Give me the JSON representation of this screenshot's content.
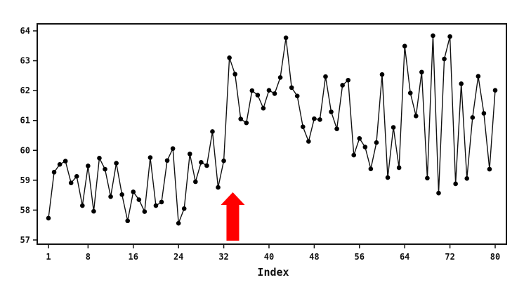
{
  "chart_data": {
    "type": "line",
    "title": "",
    "xlabel": "Index",
    "ylabel": "",
    "xlim": [
      1,
      80
    ],
    "ylim": [
      57,
      64
    ],
    "x_ticks": [
      1,
      8,
      16,
      24,
      32,
      40,
      48,
      56,
      64,
      72,
      80
    ],
    "y_ticks": [
      57,
      58,
      59,
      60,
      61,
      62,
      63,
      64
    ],
    "grid": false,
    "legend": "none",
    "colors": {
      "line": "#111111",
      "marker": "#000000",
      "arrow": "#ff0000",
      "frame": "#111111"
    },
    "annotations": [
      {
        "type": "arrow",
        "direction": "up",
        "at_x": 33.6,
        "color": "#ff0000"
      }
    ],
    "x": [
      1,
      2,
      3,
      4,
      5,
      6,
      7,
      8,
      9,
      10,
      11,
      12,
      13,
      14,
      15,
      16,
      17,
      18,
      19,
      20,
      21,
      22,
      23,
      24,
      25,
      26,
      27,
      28,
      29,
      30,
      31,
      32,
      33,
      34,
      35,
      36,
      37,
      38,
      39,
      40,
      41,
      42,
      43,
      44,
      45,
      46,
      47,
      48,
      49,
      50,
      51,
      52,
      53,
      54,
      55,
      56,
      57,
      58,
      59,
      60,
      61,
      62,
      63,
      64,
      65,
      66,
      67,
      68,
      69,
      70,
      71,
      72,
      73,
      74,
      75,
      76,
      77,
      78,
      79,
      80
    ],
    "y": [
      57.73,
      59.27,
      59.53,
      59.64,
      58.91,
      59.13,
      58.15,
      59.48,
      57.96,
      59.74,
      59.37,
      58.45,
      59.57,
      58.52,
      57.64,
      58.61,
      58.35,
      57.95,
      59.76,
      58.15,
      58.27,
      59.66,
      60.06,
      57.56,
      58.05,
      59.88,
      58.95,
      59.6,
      59.49,
      60.63,
      58.76,
      59.65,
      63.1,
      62.55,
      61.05,
      60.92,
      62.0,
      61.85,
      61.41,
      62.01,
      61.9,
      62.44,
      63.77,
      62.1,
      61.82,
      60.79,
      60.3,
      61.06,
      61.03,
      62.47,
      61.29,
      60.72,
      62.18,
      62.35,
      59.84,
      60.4,
      60.11,
      59.38,
      60.26,
      62.54,
      59.09,
      60.77,
      59.42,
      63.49,
      61.92,
      61.15,
      62.62,
      59.07,
      63.84,
      58.57,
      63.06,
      63.81,
      58.88,
      62.23,
      59.06,
      61.1,
      62.48,
      61.24,
      59.37,
      62.01
    ]
  }
}
